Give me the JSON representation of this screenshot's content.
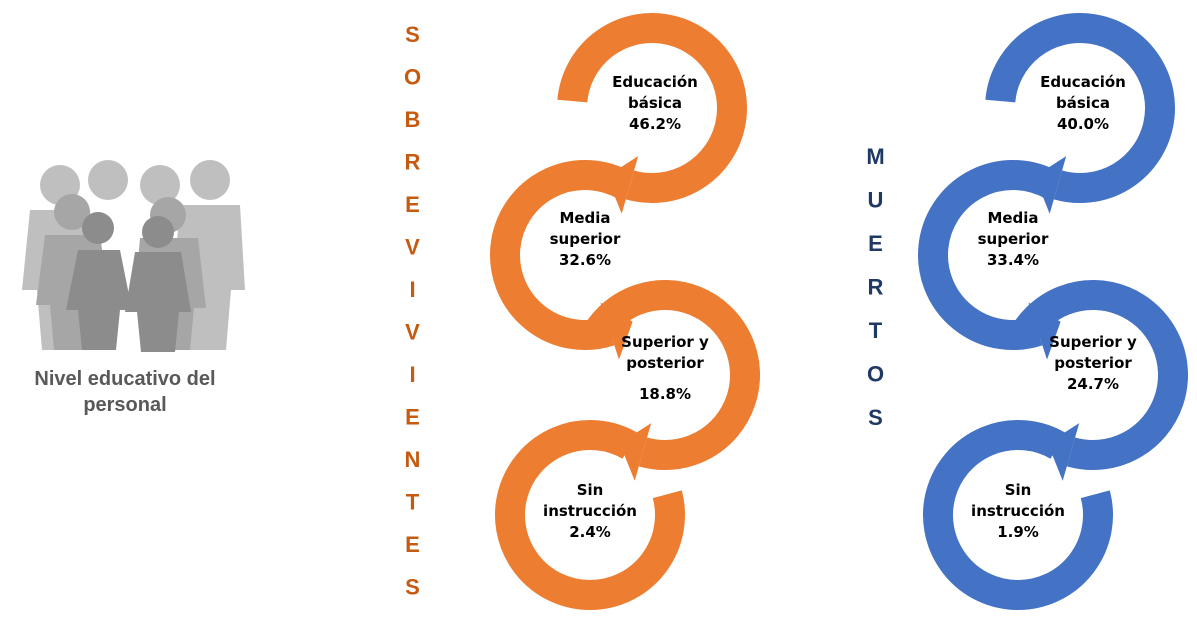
{
  "title": "Nivel educativo del personal",
  "groups": [
    {
      "name": "SOBREVIVIENTES",
      "stages": [
        {
          "label": "Educación básica",
          "value": "46.2%"
        },
        {
          "label": "Media superior",
          "value": "32.6%"
        },
        {
          "label": "Superior y posterior",
          "value": "18.8%"
        },
        {
          "label": "Sin instrucción",
          "value": "2.4%"
        }
      ]
    },
    {
      "name": "MUERTOS",
      "stages": [
        {
          "label": "Educación básica",
          "value": "40.0%"
        },
        {
          "label": "Media superior",
          "value": "33.4%"
        },
        {
          "label": "Superior y posterior",
          "value": "24.7%"
        },
        {
          "label": "Sin instrucción",
          "value": "1.9%"
        }
      ]
    }
  ]
}
